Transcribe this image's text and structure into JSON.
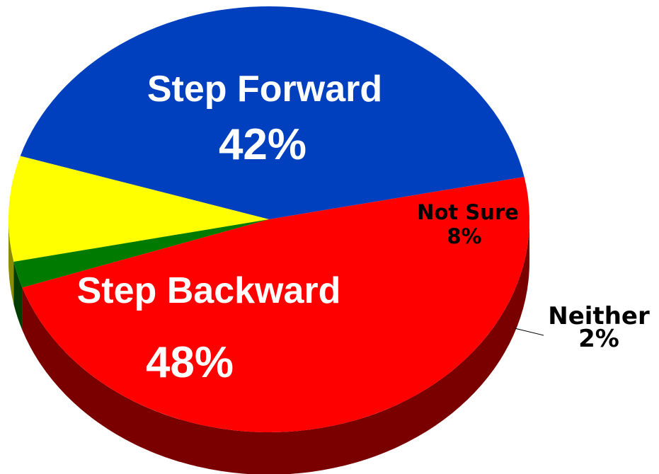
{
  "chart_data": {
    "type": "pie",
    "title": "",
    "slices": [
      {
        "label": "Step Forward",
        "value_label": "42%",
        "value": 42,
        "color": "#0040BF",
        "side_color": "#002060"
      },
      {
        "label": "Not Sure",
        "value_label": "8%",
        "value": 8,
        "color": "#FFFF00",
        "side_color": "#8C8C00"
      },
      {
        "label": "Neither",
        "value_label": "2%",
        "value": 2,
        "color": "#007A00",
        "side_color": "#003D00"
      },
      {
        "label": "Step Backward",
        "value_label": "48%",
        "value": 48,
        "color": "#FF0000",
        "side_color": "#7A0000"
      }
    ],
    "three_d": true,
    "legend": "none"
  }
}
